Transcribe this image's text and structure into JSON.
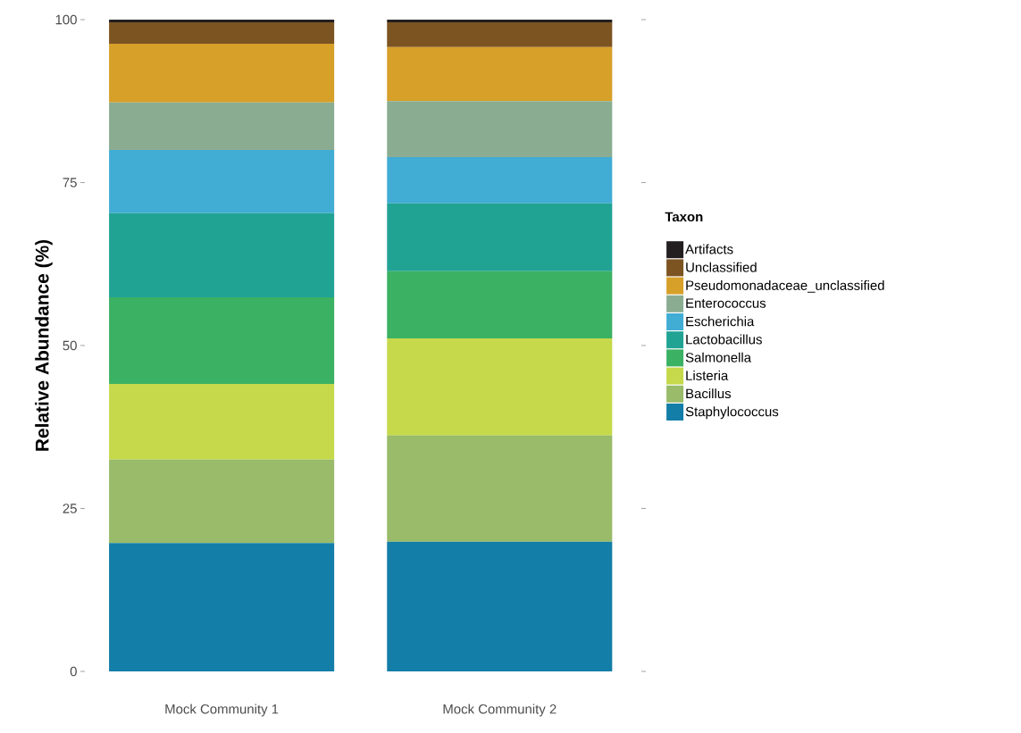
{
  "chart_data": {
    "type": "bar",
    "stacked": true,
    "ylabel": "Relative Abundance (%)",
    "legend_title": "Taxon",
    "legend": "right",
    "categories": [
      "Mock Community 1",
      "Mock Community 2"
    ],
    "ylim": [
      0,
      100
    ],
    "yticks": [
      0,
      25,
      50,
      75,
      100
    ],
    "grid": false,
    "series": [
      {
        "name": "Staphylococcus",
        "color": "#137ea8",
        "values": [
          19.7,
          19.9
        ]
      },
      {
        "name": "Bacillus",
        "color": "#99bb6a",
        "values": [
          12.8,
          16.3
        ]
      },
      {
        "name": "Listeria",
        "color": "#c5d94b",
        "values": [
          11.6,
          14.9
        ]
      },
      {
        "name": "Salmonella",
        "color": "#3bb163",
        "values": [
          13.3,
          10.3
        ]
      },
      {
        "name": "Lactobacillus",
        "color": "#21a394",
        "values": [
          12.9,
          10.4
        ]
      },
      {
        "name": "Escherichia",
        "color": "#41acd4",
        "values": [
          9.7,
          7.1
        ]
      },
      {
        "name": "Enterococcus",
        "color": "#8aad92",
        "values": [
          7.3,
          8.6
        ]
      },
      {
        "name": "Pseudomonadaceae_unclassified",
        "color": "#d6a029",
        "values": [
          9.0,
          8.3
        ]
      },
      {
        "name": "Unclassified",
        "color": "#7c5422",
        "values": [
          3.3,
          3.8
        ]
      },
      {
        "name": "Artifacts",
        "color": "#231f20",
        "values": [
          0.4,
          0.4
        ]
      }
    ]
  }
}
